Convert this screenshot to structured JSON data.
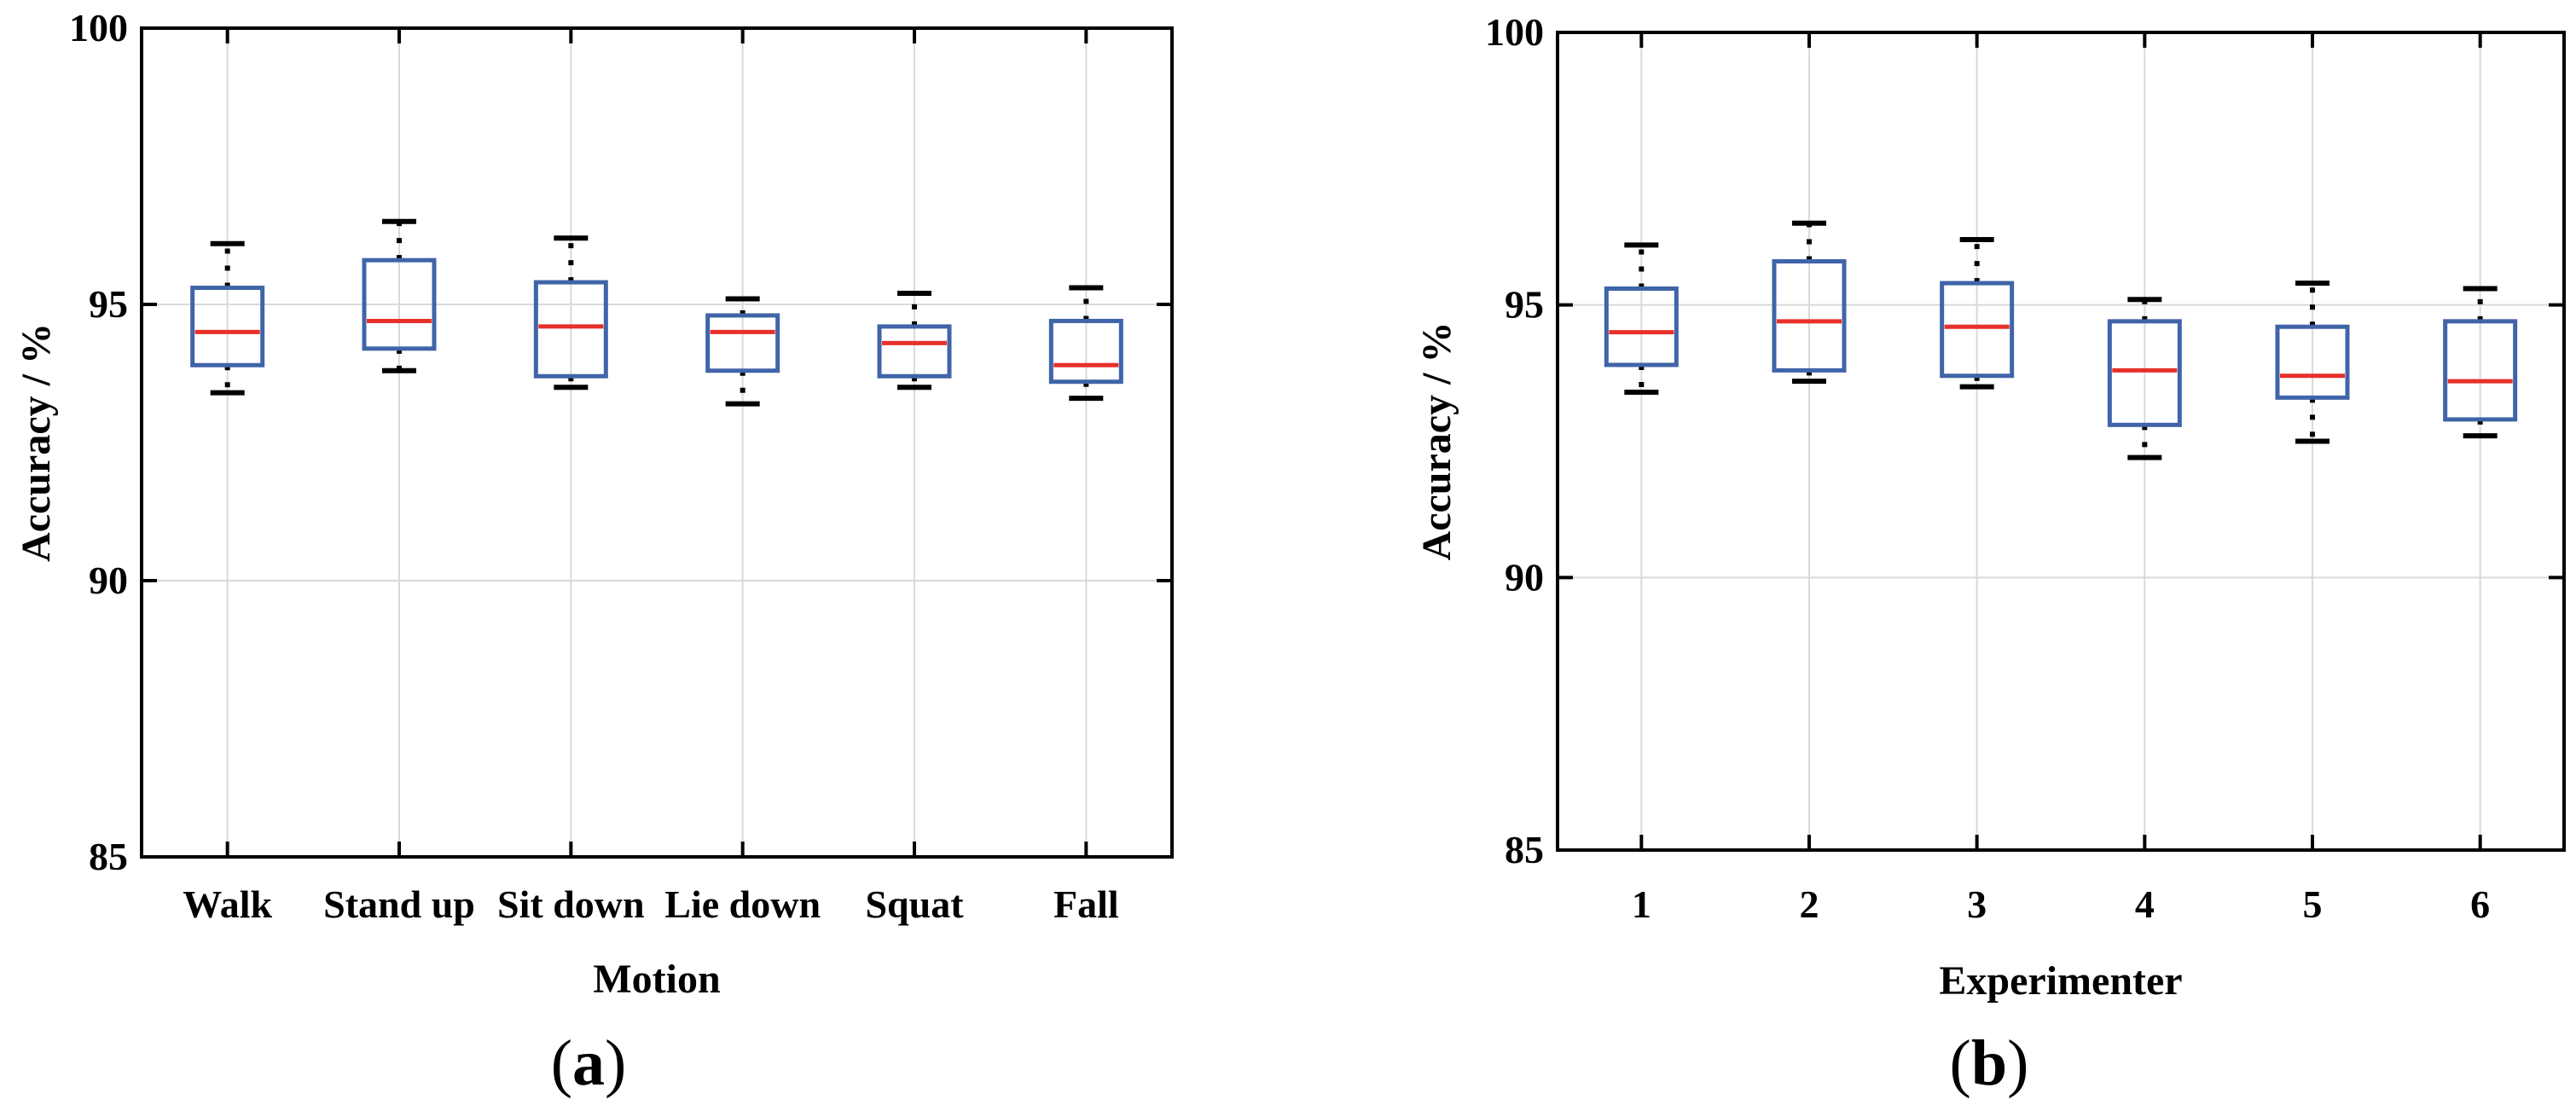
{
  "colors": {
    "box": "#4064a8",
    "median": "#e8302a",
    "whisker": "#000000",
    "grid": "#d9d9d9",
    "axis": "#000000"
  },
  "chart_data": [
    {
      "type": "box",
      "id": "a",
      "caption_letter": "a",
      "xlabel": "Motion",
      "ylabel": "Accuracy / %",
      "ylim": [
        85,
        100
      ],
      "yticks": [
        "85",
        "90",
        "95",
        "100"
      ],
      "grid": true,
      "categories": [
        "Walk",
        "Stand up",
        "Sit down",
        "Lie down",
        "Squat",
        "Fall"
      ],
      "boxes": [
        {
          "whisker_low": 93.4,
          "q1": 93.9,
          "median": 94.5,
          "q3": 95.3,
          "whisker_high": 96.1
        },
        {
          "whisker_low": 93.8,
          "q1": 94.2,
          "median": 94.7,
          "q3": 95.8,
          "whisker_high": 96.5
        },
        {
          "whisker_low": 93.5,
          "q1": 93.7,
          "median": 94.6,
          "q3": 95.4,
          "whisker_high": 96.2
        },
        {
          "whisker_low": 93.2,
          "q1": 93.8,
          "median": 94.5,
          "q3": 94.8,
          "whisker_high": 95.1
        },
        {
          "whisker_low": 93.5,
          "q1": 93.7,
          "median": 94.3,
          "q3": 94.6,
          "whisker_high": 95.2
        },
        {
          "whisker_low": 93.3,
          "q1": 93.6,
          "median": 93.9,
          "q3": 94.7,
          "whisker_high": 95.3
        }
      ]
    },
    {
      "type": "box",
      "id": "b",
      "caption_letter": "b",
      "xlabel": "Experimenter",
      "ylabel": "Accuracy / %",
      "ylim": [
        85,
        100
      ],
      "yticks": [
        "85",
        "90",
        "95",
        "100"
      ],
      "grid": true,
      "categories": [
        "1",
        "2",
        "3",
        "4",
        "5",
        "6"
      ],
      "boxes": [
        {
          "whisker_low": 93.4,
          "q1": 93.9,
          "median": 94.5,
          "q3": 95.3,
          "whisker_high": 96.1
        },
        {
          "whisker_low": 93.6,
          "q1": 93.8,
          "median": 94.7,
          "q3": 95.8,
          "whisker_high": 96.5
        },
        {
          "whisker_low": 93.5,
          "q1": 93.7,
          "median": 94.6,
          "q3": 95.4,
          "whisker_high": 96.2
        },
        {
          "whisker_low": 92.2,
          "q1": 92.8,
          "median": 93.8,
          "q3": 94.7,
          "whisker_high": 95.1
        },
        {
          "whisker_low": 92.5,
          "q1": 93.3,
          "median": 93.7,
          "q3": 94.6,
          "whisker_high": 95.4
        },
        {
          "whisker_low": 92.6,
          "q1": 92.9,
          "median": 93.6,
          "q3": 94.7,
          "whisker_high": 95.3
        }
      ]
    }
  ]
}
